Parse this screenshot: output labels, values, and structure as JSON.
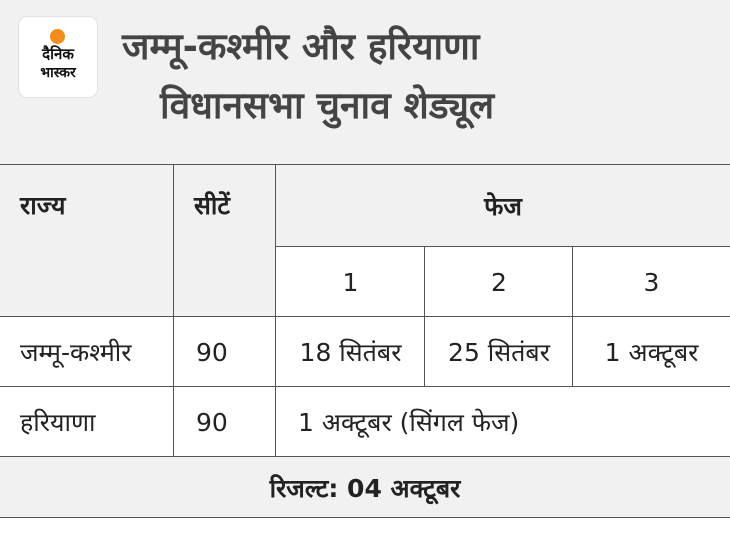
{
  "logo": {
    "line1": "दैनिक",
    "line2": "भास्कर",
    "dot_color": "#f28c1b"
  },
  "title": {
    "line1": "जम्मू-कश्मीर और हरियाणा",
    "line2": "विधानसभा चुनाव शेड्यूल"
  },
  "table": {
    "headers": {
      "state": "राज्य",
      "seats": "सीटें",
      "phase": "फेज",
      "phase_numbers": [
        "1",
        "2",
        "3"
      ]
    },
    "rows": [
      {
        "state": "जम्मू-कश्मीर",
        "seats": "90",
        "phase1": "18 सितंबर",
        "phase2": "25 सितंबर",
        "phase3": "1 अक्टूबर"
      },
      {
        "state": "हरियाणा",
        "seats": "90",
        "single_phase": "1 अक्टूबर (सिंगल फेज)"
      }
    ]
  },
  "result": "रिजल्ट: 04 अक्टूबर",
  "colors": {
    "header_bg": "#f1f1f1",
    "title_text": "#444444",
    "grid_line": "#555555"
  }
}
